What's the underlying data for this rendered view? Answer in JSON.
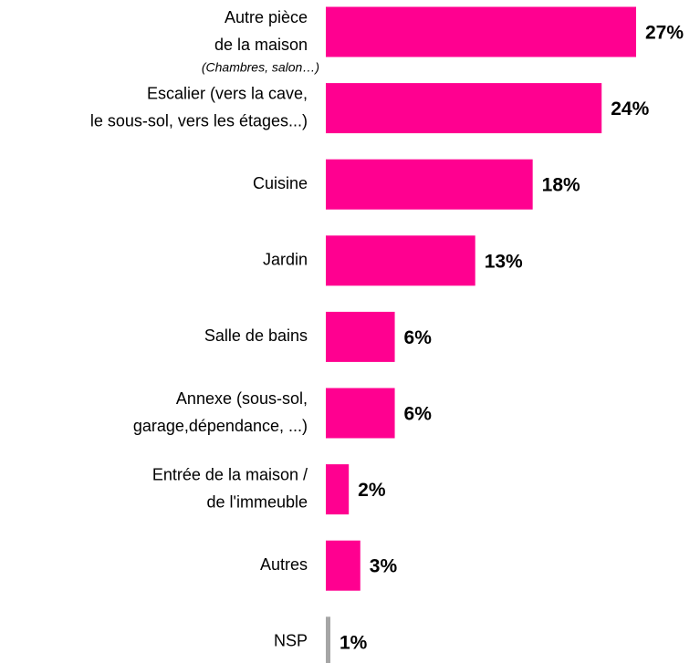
{
  "chart_data": {
    "type": "bar",
    "orientation": "horizontal",
    "categories": [
      "Autre pièce\nde la maison",
      "Escalier (vers la cave,\nle sous-sol, vers les étages...)",
      "Cuisine",
      "Jardin",
      "Salle de bains",
      "Annexe (sous-sol,\ngarage,dépendance, ...)",
      "Entrée de la maison /\nde l'immeuble",
      "Autres",
      "NSP"
    ],
    "category_notes": [
      "(Chambres, salon…)",
      null,
      null,
      null,
      null,
      null,
      null,
      null,
      null
    ],
    "values": [
      27,
      24,
      18,
      13,
      6,
      6,
      2,
      3,
      1
    ],
    "value_labels": [
      "27%",
      "24%",
      "18%",
      "13%",
      "6%",
      "6%",
      "2%",
      "3%",
      "1%"
    ],
    "colors": [
      "#ff0090",
      "#ff0090",
      "#ff0090",
      "#ff0090",
      "#ff0090",
      "#ff0090",
      "#ff0090",
      "#ff0090",
      "#a6a6a6"
    ]
  }
}
